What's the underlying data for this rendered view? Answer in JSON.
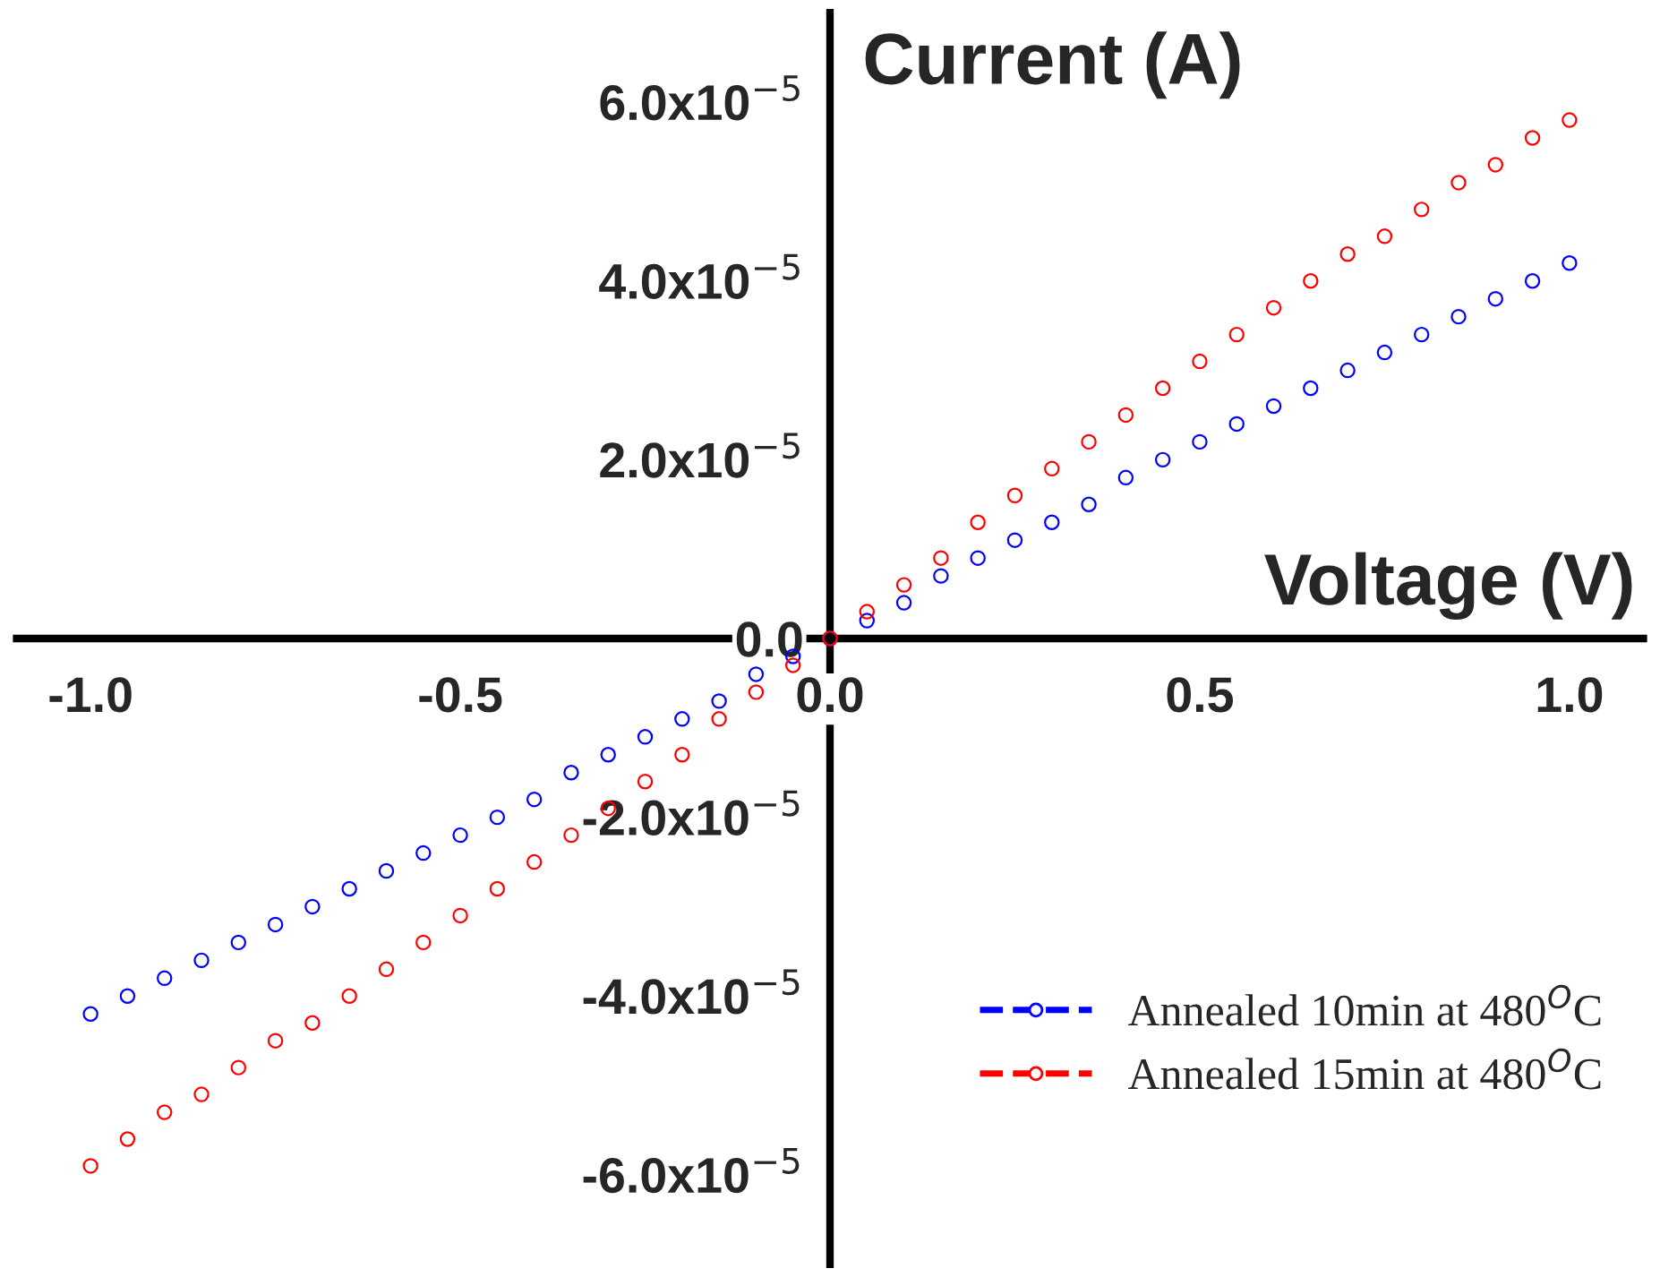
{
  "chart_data": {
    "type": "scatter",
    "xlabel": "Voltage (V)",
    "ylabel": "Current (A)",
    "x": [
      -1.0,
      -0.95,
      -0.9,
      -0.85,
      -0.8,
      -0.75,
      -0.7,
      -0.65,
      -0.6,
      -0.55,
      -0.5,
      -0.45,
      -0.4,
      -0.35,
      -0.3,
      -0.25,
      -0.2,
      -0.15,
      -0.1,
      -0.05,
      0.0,
      0.05,
      0.1,
      0.15,
      0.2,
      0.25,
      0.3,
      0.35,
      0.4,
      0.45,
      0.5,
      0.55,
      0.6,
      0.65,
      0.7,
      0.75,
      0.8,
      0.85,
      0.9,
      0.95,
      1.0
    ],
    "series": [
      {
        "name": "Annealed 10min at 480$^{O}$C",
        "color": "#0000ff",
        "values": [
          -4.2e-05,
          -4e-05,
          -3.8e-05,
          -3.6e-05,
          -3.4e-05,
          -3.2e-05,
          -3e-05,
          -2.8e-05,
          -2.6e-05,
          -2.4e-05,
          -2.2e-05,
          -2e-05,
          -1.8e-05,
          -1.5e-05,
          -1.3e-05,
          -1.1e-05,
          -9e-06,
          -7e-06,
          -4e-06,
          -2e-06,
          0.0,
          2e-06,
          4e-06,
          7e-06,
          9e-06,
          1.1e-05,
          1.3e-05,
          1.5e-05,
          1.8e-05,
          2e-05,
          2.2e-05,
          2.4e-05,
          2.6e-05,
          2.8e-05,
          3e-05,
          3.2e-05,
          3.4e-05,
          3.6e-05,
          3.8e-05,
          4e-05,
          4.2e-05
        ]
      },
      {
        "name": "Annealed 15min at 480$^{O}$C",
        "color": "#ff0000",
        "values": [
          -5.9e-05,
          -5.6e-05,
          -5.3e-05,
          -5.1e-05,
          -4.8e-05,
          -4.5e-05,
          -4.3e-05,
          -4e-05,
          -3.7e-05,
          -3.4e-05,
          -3.1e-05,
          -2.8e-05,
          -2.5e-05,
          -2.2e-05,
          -1.9e-05,
          -1.6e-05,
          -1.3e-05,
          -9e-06,
          -6e-06,
          -3e-06,
          0.0,
          3e-06,
          6e-06,
          9e-06,
          1.3e-05,
          1.6e-05,
          1.9e-05,
          2.2e-05,
          2.5e-05,
          2.8e-05,
          3.1e-05,
          3.4e-05,
          3.7e-05,
          4e-05,
          4.3e-05,
          4.5e-05,
          4.8e-05,
          5.1e-05,
          5.3e-05,
          5.6e-05,
          5.8e-05
        ]
      }
    ],
    "xlim": [
      -1.1,
      1.1
    ],
    "ylim": [
      -7e-05,
      7e-05
    ],
    "xticks": [
      {
        "value": -1.0,
        "label": "-1.0"
      },
      {
        "value": -0.5,
        "label": "-0.5"
      },
      {
        "value": 0.0,
        "label": "0.0"
      },
      {
        "value": 0.5,
        "label": "0.5"
      },
      {
        "value": 1.0,
        "label": "1.0"
      }
    ],
    "yticks": [
      {
        "value": -6e-05,
        "label": "-6.0x10$^{−5}$"
      },
      {
        "value": -4e-05,
        "label": "-4.0x10$^{−5}$"
      },
      {
        "value": -2e-05,
        "label": "-2.0x10$^{−5}$"
      },
      {
        "value": 0.0,
        "label": "0.0"
      },
      {
        "value": 2e-05,
        "label": "2.0x10$^{−5}$"
      },
      {
        "value": 4e-05,
        "label": "4.0x10$^{−5}$"
      },
      {
        "value": 6e-05,
        "label": "6.0x10$^{−5}$"
      }
    ],
    "marker": "circle",
    "grid": false,
    "legend": "bottom right"
  }
}
